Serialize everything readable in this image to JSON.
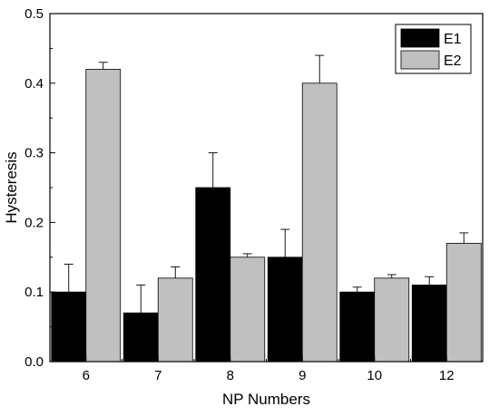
{
  "chart_data": {
    "type": "bar",
    "xlabel": "NP Numbers",
    "ylabel": "Hysteresis",
    "categories": [
      "6",
      "7",
      "8",
      "9",
      "10",
      "12"
    ],
    "ylim": [
      0,
      0.5
    ],
    "yticks": [
      "0.0",
      "0.1",
      "0.2",
      "0.3",
      "0.4",
      "0.5"
    ],
    "grid": false,
    "legend_position": "top-right",
    "series": [
      {
        "name": "E1",
        "color": "#000000",
        "values": [
          0.1,
          0.07,
          0.25,
          0.15,
          0.1,
          0.11
        ],
        "errors": [
          0.04,
          0.04,
          0.05,
          0.04,
          0.007,
          0.012
        ]
      },
      {
        "name": "E2",
        "color": "#c0c0c0",
        "values": [
          0.42,
          0.12,
          0.15,
          0.4,
          0.12,
          0.17
        ],
        "errors": [
          0.01,
          0.016,
          0.005,
          0.04,
          0.005,
          0.015
        ]
      }
    ]
  }
}
